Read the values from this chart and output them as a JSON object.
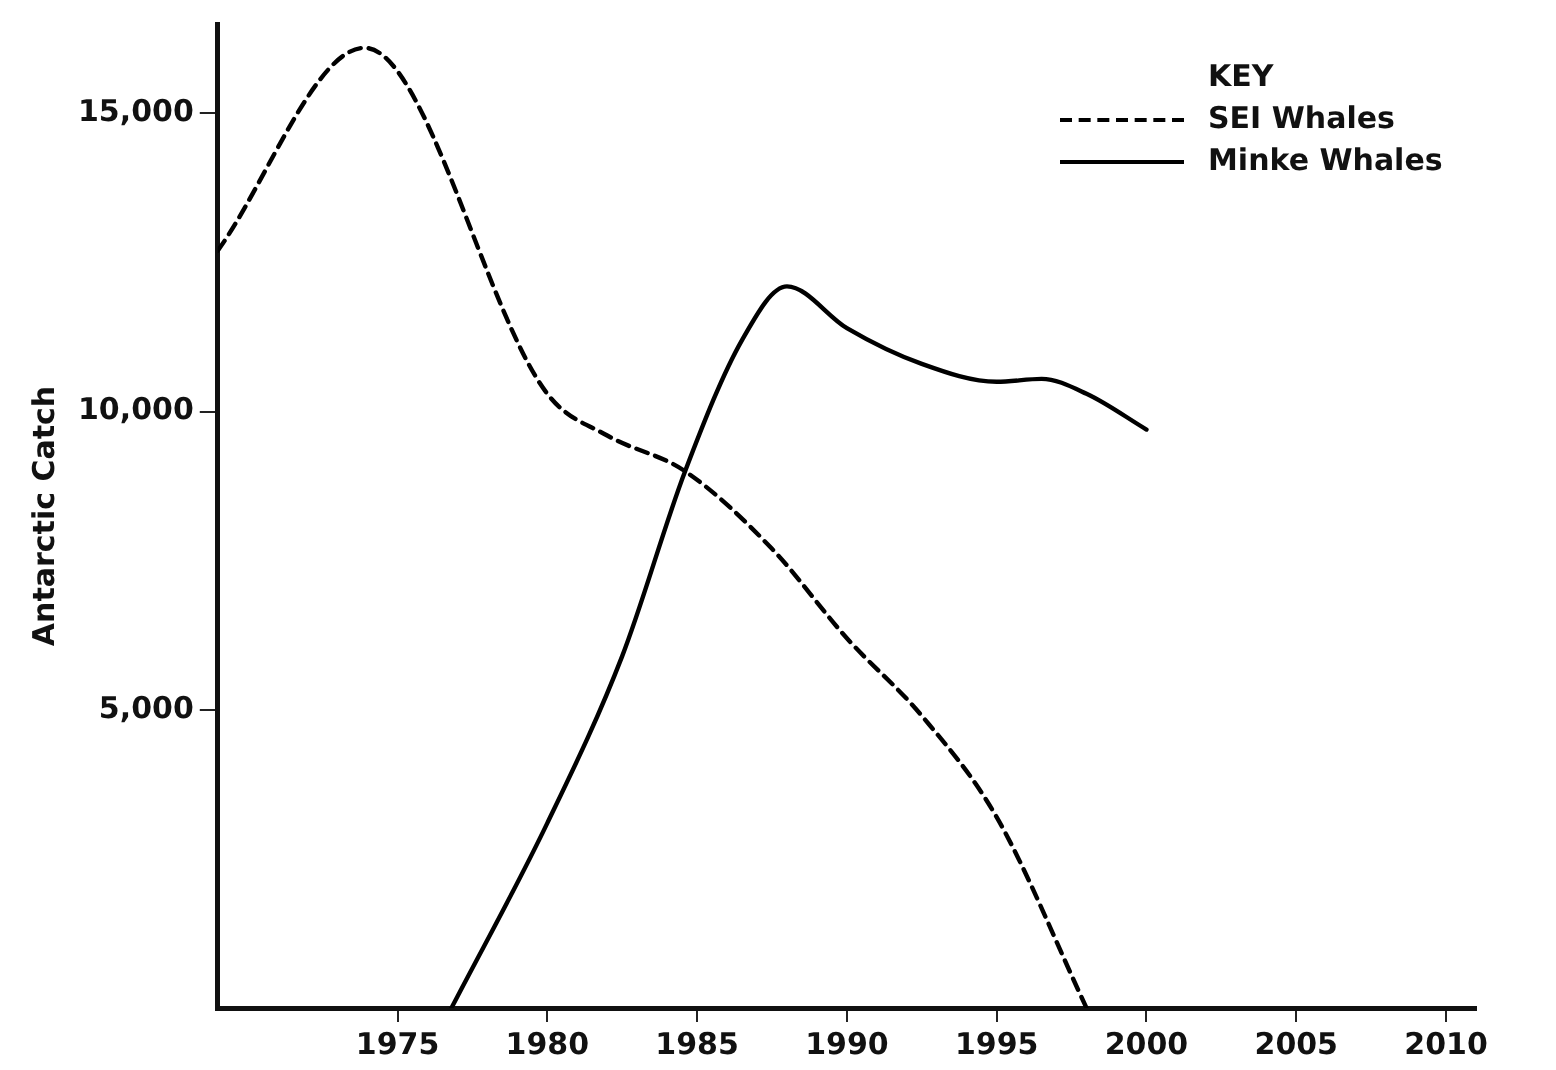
{
  "chart_data": {
    "type": "line",
    "ylabel": "Antarctic Catch",
    "legend_title": "KEY",
    "legend": "top right",
    "grid": false,
    "marker": "none",
    "xlim": [
      1969,
      2011
    ],
    "xticks": [
      1975,
      1980,
      1985,
      1990,
      1995,
      2000,
      2005,
      2010
    ],
    "ylim": [
      0,
      16500
    ],
    "yticks": [
      {
        "value": 5000,
        "label": "5,000"
      },
      {
        "value": 10000,
        "label": "10,000"
      },
      {
        "value": 15000,
        "label": "15,000"
      }
    ],
    "series": [
      {
        "name": "SEI Whales",
        "color": "#000000",
        "line_style": "dashed",
        "x": [
          1969,
          1973.9,
          1980,
          1982,
          1984.6,
          1987.5,
          1990,
          1992.5,
          1995,
          1998
        ],
        "values": [
          12700,
          16100,
          10300,
          9600,
          9000,
          7700,
          6200,
          4900,
          3200,
          0
        ]
      },
      {
        "name": "Minke Whales",
        "color": "#000000",
        "line_style": "solid",
        "x": [
          1976.8,
          1980,
          1982.5,
          1984.6,
          1986.5,
          1988,
          1990,
          1992.5,
          1995,
          1996.5,
          1998,
          2000
        ],
        "values": [
          0,
          3100,
          5900,
          9000,
          11200,
          12100,
          11400,
          10800,
          10500,
          10550,
          10300,
          9700
        ]
      }
    ]
  }
}
